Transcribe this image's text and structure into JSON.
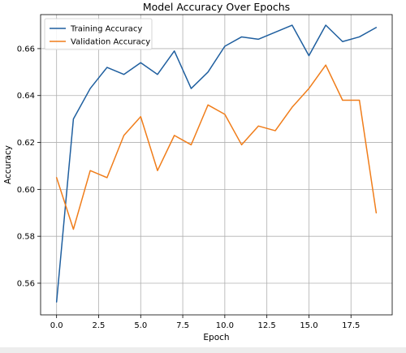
{
  "chart_data": {
    "type": "line",
    "title": "Model Accuracy Over Epochs",
    "xlabel": "Epoch",
    "ylabel": "Accuracy",
    "x": [
      0,
      1,
      2,
      3,
      4,
      5,
      6,
      7,
      8,
      9,
      10,
      11,
      12,
      13,
      14,
      15,
      16,
      17,
      18,
      19
    ],
    "series": [
      {
        "name": "Training Accuracy",
        "color": "#1f5f9f",
        "values": [
          0.552,
          0.63,
          0.643,
          0.652,
          0.649,
          0.654,
          0.649,
          0.659,
          0.643,
          0.65,
          0.661,
          0.665,
          0.664,
          0.667,
          0.67,
          0.657,
          0.67,
          0.663,
          0.665,
          0.669
        ]
      },
      {
        "name": "Validation Accuracy",
        "color": "#f07d1a",
        "values": [
          0.605,
          0.583,
          0.608,
          0.605,
          0.623,
          0.631,
          0.608,
          0.623,
          0.619,
          0.636,
          0.632,
          0.619,
          0.627,
          0.625,
          0.635,
          0.643,
          0.653,
          0.638,
          0.638,
          0.59
        ]
      }
    ],
    "xlim": [
      -0.95,
      19.95
    ],
    "ylim": [
      0.5465,
      0.6745
    ],
    "xticks": [
      0.0,
      2.5,
      5.0,
      7.5,
      10.0,
      12.5,
      15.0,
      17.5
    ],
    "xtick_labels": [
      "0.0",
      "2.5",
      "5.0",
      "7.5",
      "10.0",
      "12.5",
      "15.0",
      "17.5"
    ],
    "yticks": [
      0.56,
      0.58,
      0.6,
      0.62,
      0.64,
      0.66
    ],
    "ytick_labels": [
      "0.56",
      "0.58",
      "0.60",
      "0.62",
      "0.64",
      "0.66"
    ],
    "grid": true,
    "legend_position": "top-left"
  }
}
